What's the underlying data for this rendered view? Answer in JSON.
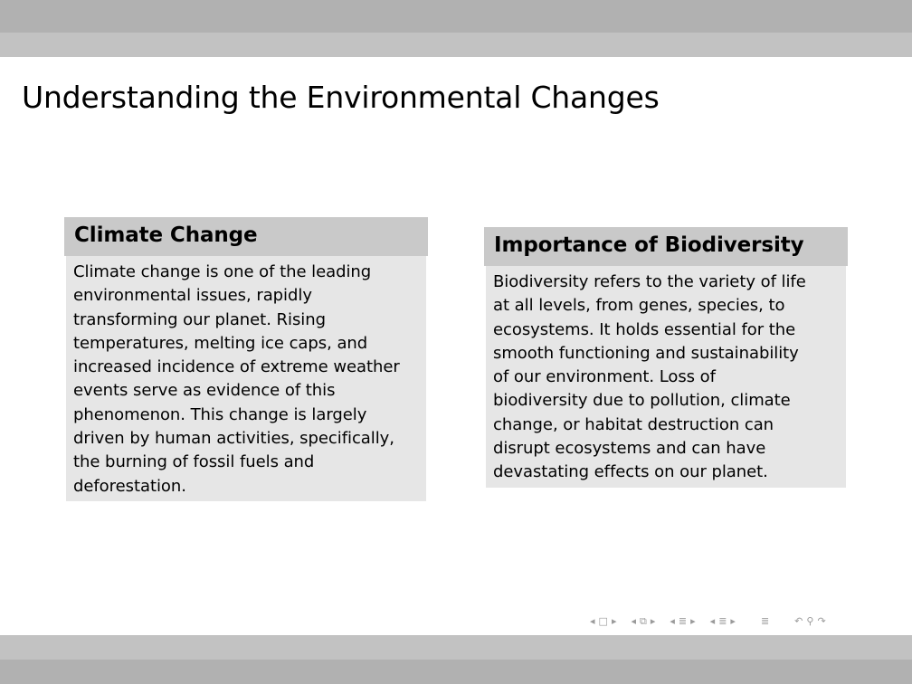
{
  "frame": {
    "title": "Understanding the Environmental Changes"
  },
  "blocks": [
    {
      "title": "Climate Change",
      "lines": [
        "Climate change is one of the leading",
        "environmental issues, rapidly",
        "transforming our planet.  Rising",
        "temperatures, melting ice caps, and",
        "increased incidence of extreme weather",
        "events serve as evidence of this",
        "phenomenon.  This change is largely",
        "driven by human activities, specifically,",
        "the burning of fossil fuels and",
        "deforestation."
      ]
    },
    {
      "title": "Importance of Biodiversity",
      "lines": [
        "Biodiversity refers to the variety of life",
        "at all levels, from genes, species, to",
        "ecosystems.  It holds essential for the",
        "smooth functioning and sustainability",
        "of our environment.  Loss of",
        "biodiversity due to pollution, climate",
        "change, or habitat destruction can",
        "disrupt ecosystems and can have",
        "devastating effects on our planet."
      ]
    }
  ],
  "navigation": {
    "icons": [
      "prev-slide-arrow-icon",
      "slide-icon",
      "next-slide-arrow-icon",
      "prev-frame-arrow-icon",
      "frame-icon",
      "next-frame-arrow-icon",
      "prev-subsection-arrow-icon",
      "subsection-icon",
      "next-subsection-arrow-icon",
      "prev-section-arrow-icon",
      "section-icon",
      "next-section-arrow-icon",
      "outline-icon",
      "back-icon",
      "search-icon",
      "forward-icon"
    ]
  }
}
